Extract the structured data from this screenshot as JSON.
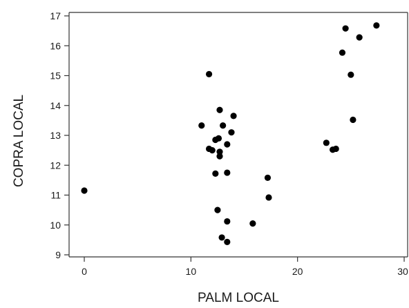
{
  "chart_data": {
    "type": "scatter",
    "title": "",
    "xlabel": "PALM LOCAL",
    "ylabel": "COPRA LOCAL",
    "xlim": [
      0,
      30
    ],
    "ylim": [
      9,
      17
    ],
    "xticks": [
      0,
      10,
      20,
      30
    ],
    "yticks": [
      9,
      10,
      11,
      12,
      13,
      14,
      15,
      16,
      17
    ],
    "grid": false,
    "legend": "none",
    "point_color": "#000000",
    "axis_color": "#333333",
    "points": [
      {
        "x": 0.0,
        "y": 11.15
      },
      {
        "x": 11.7,
        "y": 15.05
      },
      {
        "x": 11.0,
        "y": 13.33
      },
      {
        "x": 11.7,
        "y": 12.55
      },
      {
        "x": 12.0,
        "y": 12.5
      },
      {
        "x": 12.3,
        "y": 12.85
      },
      {
        "x": 12.6,
        "y": 12.9
      },
      {
        "x": 12.7,
        "y": 12.45
      },
      {
        "x": 12.7,
        "y": 12.3
      },
      {
        "x": 12.7,
        "y": 13.85
      },
      {
        "x": 13.0,
        "y": 13.33
      },
      {
        "x": 13.4,
        "y": 12.7
      },
      {
        "x": 13.8,
        "y": 13.1
      },
      {
        "x": 14.0,
        "y": 13.65
      },
      {
        "x": 12.3,
        "y": 11.72
      },
      {
        "x": 13.4,
        "y": 11.75
      },
      {
        "x": 12.5,
        "y": 10.5
      },
      {
        "x": 13.4,
        "y": 10.12
      },
      {
        "x": 12.9,
        "y": 9.58
      },
      {
        "x": 13.4,
        "y": 9.43
      },
      {
        "x": 15.8,
        "y": 10.05
      },
      {
        "x": 17.2,
        "y": 11.58
      },
      {
        "x": 17.3,
        "y": 10.92
      },
      {
        "x": 22.7,
        "y": 12.75
      },
      {
        "x": 23.3,
        "y": 12.52
      },
      {
        "x": 23.6,
        "y": 12.55
      },
      {
        "x": 24.2,
        "y": 15.77
      },
      {
        "x": 24.5,
        "y": 16.58
      },
      {
        "x": 25.0,
        "y": 15.03
      },
      {
        "x": 25.2,
        "y": 13.52
      },
      {
        "x": 25.8,
        "y": 16.28
      },
      {
        "x": 27.4,
        "y": 16.68
      }
    ]
  }
}
